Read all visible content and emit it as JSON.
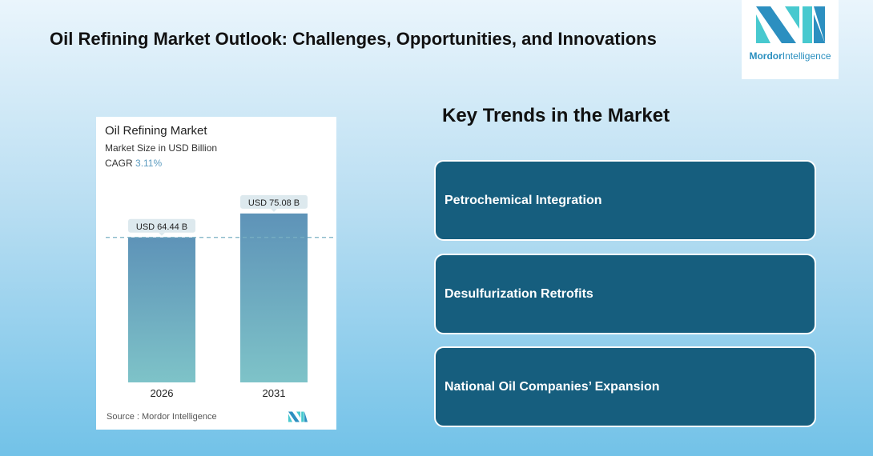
{
  "header": {
    "title": "Oil Refining Market Outlook: Challenges, Opportunities, and Innovations"
  },
  "logo": {
    "brand_bold": "Mordor",
    "brand_light": "Intelligence"
  },
  "chart_data": {
    "type": "bar",
    "title": "Oil Refining Market",
    "subtitle": "Market Size in USD Billion",
    "cagr_label": "CAGR",
    "cagr_value": "3.11%",
    "categories": [
      "2026",
      "2031"
    ],
    "values": [
      64.44,
      75.08
    ],
    "data_labels": [
      "USD 64.44 B",
      "USD 75.08 B"
    ],
    "ylim": [
      0,
      80
    ],
    "xlabel": "",
    "ylabel": "",
    "source": "Source :  Mordor Intelligence",
    "colors": {
      "bar_top": "#5e93b8",
      "bar_bottom": "#7ec3c8",
      "reference_line": "#7ab0c4"
    }
  },
  "trends": {
    "heading": "Key Trends in the Market",
    "items": [
      "Petrochemical Integration",
      "Desulfurization Retrofits",
      "National Oil Companies’ Expansion"
    ]
  }
}
